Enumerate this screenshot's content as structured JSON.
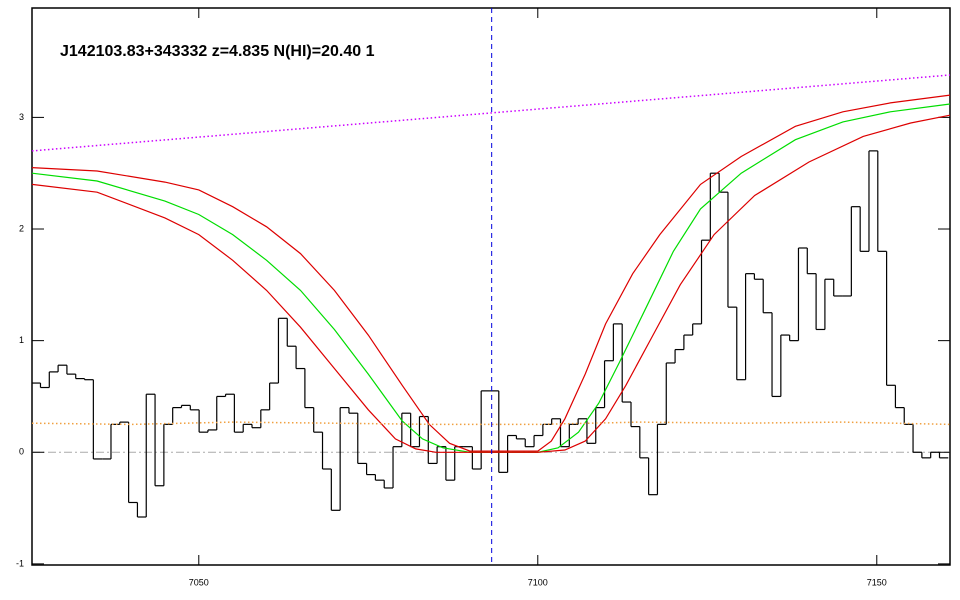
{
  "chart_data": {
    "type": "line",
    "title": "J142103.83+343332 z=4.835 N(HI)=20.40 1",
    "xlim": [
      7025.4,
      7160.8
    ],
    "ylim": [
      -1.01,
      3.98
    ],
    "xticks": [
      7050,
      7100,
      7150
    ],
    "yticks": [
      -1,
      0,
      1,
      2,
      3
    ],
    "vline_x": 7093.2,
    "series": [
      {
        "color": "#000000",
        "drawstyle": "steps-mid",
        "linestyle": "solid",
        "x": [
          7026.0,
          7027.3,
          7028.6,
          7029.9,
          7031.2,
          7032.5,
          7033.8,
          7035.1,
          7036.4,
          7037.7,
          7039.0,
          7040.3,
          7041.6,
          7042.9,
          7044.2,
          7045.5,
          7046.8,
          7048.1,
          7049.4,
          7050.7,
          7052.0,
          7053.3,
          7054.6,
          7055.9,
          7057.2,
          7058.5,
          7059.8,
          7061.1,
          7062.4,
          7063.7,
          7065.0,
          7066.3,
          7067.6,
          7068.9,
          7070.2,
          7071.5,
          7072.8,
          7074.1,
          7075.4,
          7076.7,
          7078.0,
          7079.3,
          7080.6,
          7081.9,
          7083.2,
          7084.5,
          7085.8,
          7087.1,
          7088.4,
          7089.7,
          7091.0,
          7092.3,
          7093.6,
          7094.9,
          7096.2,
          7097.5,
          7098.8,
          7100.1,
          7101.4,
          7102.7,
          7104.0,
          7105.3,
          7106.6,
          7107.9,
          7109.2,
          7110.5,
          7111.8,
          7113.1,
          7114.4,
          7115.7,
          7117.0,
          7118.3,
          7119.6,
          7120.9,
          7122.2,
          7123.5,
          7124.8,
          7126.1,
          7127.4,
          7128.7,
          7130.0,
          7131.3,
          7132.6,
          7133.9,
          7135.2,
          7136.5,
          7137.8,
          7139.1,
          7140.4,
          7141.7,
          7143.0,
          7144.3,
          7145.6,
          7146.9,
          7148.2,
          7149.5,
          7150.8,
          7152.1,
          7153.4,
          7154.7,
          7156.0,
          7157.3,
          7158.6,
          7159.9
        ],
        "values": [
          0.62,
          0.58,
          0.72,
          0.78,
          0.7,
          0.66,
          0.65,
          -0.06,
          -0.06,
          0.25,
          0.27,
          -0.45,
          -0.58,
          0.52,
          -0.3,
          0.25,
          0.4,
          0.42,
          0.38,
          0.18,
          0.2,
          0.5,
          0.52,
          0.18,
          0.25,
          0.22,
          0.38,
          0.62,
          1.2,
          0.95,
          0.75,
          0.4,
          0.18,
          -0.15,
          -0.52,
          0.4,
          0.35,
          -0.1,
          -0.2,
          -0.25,
          -0.32,
          0.05,
          0.35,
          0.05,
          0.32,
          -0.1,
          0.05,
          -0.25,
          0.05,
          0.05,
          -0.15,
          0.55,
          0.55,
          -0.18,
          0.15,
          0.12,
          0.05,
          0.15,
          0.25,
          0.3,
          0.05,
          0.25,
          0.3,
          0.08,
          0.4,
          0.82,
          1.15,
          0.45,
          0.23,
          -0.05,
          -0.38,
          0.25,
          0.8,
          0.92,
          1.05,
          1.15,
          1.9,
          2.5,
          2.33,
          1.3,
          0.65,
          1.6,
          1.55,
          1.25,
          0.5,
          1.05,
          1.0,
          1.83,
          1.6,
          1.1,
          1.55,
          1.4,
          1.4,
          2.2,
          1.8,
          2.7,
          1.8,
          0.6,
          0.4,
          0.25,
          0.0,
          -0.05,
          0.0,
          -0.05
        ]
      },
      {
        "color": "#00dd00",
        "drawstyle": "line",
        "linestyle": "solid",
        "x": [
          7025.4,
          7035,
          7045,
          7050,
          7055,
          7060,
          7065,
          7070,
          7075,
          7080,
          7083,
          7086,
          7090,
          7100,
          7103,
          7106,
          7109,
          7112,
          7116,
          7120,
          7124,
          7130,
          7138,
          7145,
          7152,
          7160.8
        ],
        "values": [
          2.5,
          2.43,
          2.25,
          2.13,
          1.95,
          1.72,
          1.45,
          1.1,
          0.7,
          0.28,
          0.12,
          0.04,
          0.0,
          0.0,
          0.04,
          0.18,
          0.44,
          0.8,
          1.3,
          1.8,
          2.18,
          2.5,
          2.8,
          2.96,
          3.05,
          3.12
        ]
      },
      {
        "color": "#dd0000",
        "drawstyle": "line",
        "linestyle": "solid",
        "x": [
          7025.4,
          7035,
          7045,
          7050,
          7055,
          7060,
          7065,
          7070,
          7075,
          7080,
          7084,
          7087,
          7090,
          7100,
          7102,
          7104,
          7107,
          7110,
          7114,
          7118,
          7124,
          7130,
          7138,
          7145,
          7152,
          7160.8
        ],
        "values": [
          2.55,
          2.52,
          2.42,
          2.35,
          2.2,
          2.02,
          1.78,
          1.45,
          1.05,
          0.6,
          0.25,
          0.08,
          0.01,
          0.01,
          0.1,
          0.3,
          0.7,
          1.15,
          1.6,
          1.95,
          2.4,
          2.65,
          2.92,
          3.05,
          3.13,
          3.2
        ]
      },
      {
        "color": "#dd0000",
        "drawstyle": "line",
        "linestyle": "solid",
        "x": [
          7025.4,
          7035,
          7045,
          7050,
          7055,
          7060,
          7065,
          7070,
          7075,
          7079,
          7082,
          7085,
          7100,
          7104,
          7107,
          7110,
          7113,
          7117,
          7121,
          7126,
          7132,
          7140,
          7148,
          7155,
          7160.8
        ],
        "values": [
          2.4,
          2.33,
          2.1,
          1.95,
          1.72,
          1.45,
          1.12,
          0.75,
          0.38,
          0.12,
          0.03,
          0.0,
          0.0,
          0.02,
          0.1,
          0.3,
          0.6,
          1.05,
          1.5,
          1.95,
          2.3,
          2.6,
          2.83,
          2.95,
          3.02
        ]
      },
      {
        "color": "#cc00ff",
        "drawstyle": "line",
        "linestyle": "dotted",
        "x": [
          7025.4,
          7160.8
        ],
        "values": [
          2.7,
          3.38
        ]
      },
      {
        "color": "#f0a040",
        "drawstyle": "line",
        "linestyle": "dotted",
        "x": [
          7025.4,
          7040,
          7055,
          7070,
          7085,
          7100,
          7115,
          7130,
          7145,
          7160.8
        ],
        "values": [
          0.26,
          0.25,
          0.27,
          0.26,
          0.25,
          0.25,
          0.27,
          0.26,
          0.27,
          0.25
        ]
      }
    ]
  }
}
